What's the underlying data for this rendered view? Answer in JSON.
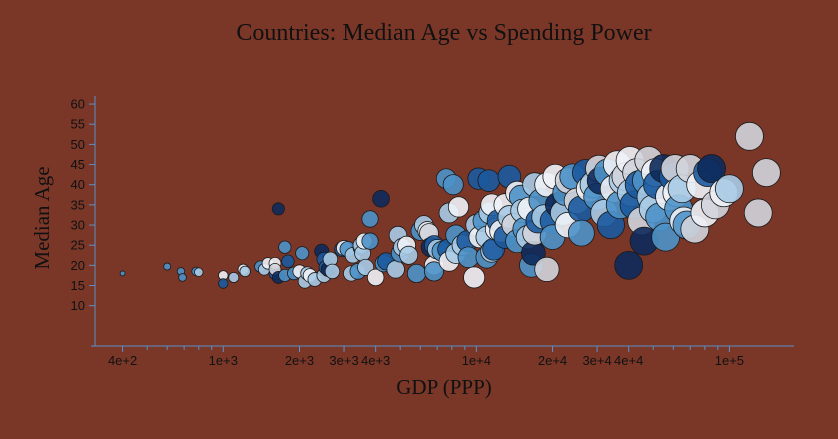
{
  "chart_data": {
    "type": "scatter",
    "title": "Countries: Median Age vs Spending Power",
    "xlabel": "GDP (PPP)",
    "ylabel": "Median Age",
    "x_scale": "log",
    "xlim": [
      300,
      180000
    ],
    "ylim": [
      0,
      62
    ],
    "grid": false,
    "x_ticks": [
      {
        "value": 400,
        "label": "4e+2"
      },
      {
        "value": 1000,
        "label": "1e+3"
      },
      {
        "value": 2000,
        "label": "2e+3"
      },
      {
        "value": 3000,
        "label": "3e+3"
      },
      {
        "value": 4000,
        "label": "4e+3"
      },
      {
        "value": 10000,
        "label": "1e+4"
      },
      {
        "value": 20000,
        "label": "2e+4"
      },
      {
        "value": 30000,
        "label": "3e+4"
      },
      {
        "value": 40000,
        "label": "4e+4"
      },
      {
        "value": 100000,
        "label": "1e+5"
      }
    ],
    "x_minor_ticks": [
      500,
      600,
      700,
      800,
      900,
      5000,
      6000,
      7000,
      8000,
      9000,
      50000,
      60000,
      70000,
      80000,
      90000
    ],
    "y_ticks": [
      10,
      15,
      20,
      25,
      30,
      35,
      40,
      45,
      50,
      55,
      60
    ],
    "color_scale": [
      "#0d2a5c",
      "#1b5aa0",
      "#4d92c9",
      "#a9cbe6",
      "#eef2f7",
      "#d2d4dc"
    ],
    "points": [
      [
        400,
        18,
        2
      ],
      [
        600,
        19.7,
        2
      ],
      [
        680,
        18.5,
        2
      ],
      [
        690,
        17,
        2
      ],
      [
        780,
        18.5,
        2
      ],
      [
        800,
        18.3,
        3
      ],
      [
        1000,
        17.5,
        4
      ],
      [
        1000,
        15.5,
        1
      ],
      [
        1100,
        17,
        3
      ],
      [
        1200,
        19,
        4
      ],
      [
        1220,
        18.5,
        3
      ],
      [
        1400,
        19.7,
        2
      ],
      [
        1450,
        19,
        3
      ],
      [
        1500,
        20.5,
        4
      ],
      [
        1600,
        18,
        1
      ],
      [
        1600,
        20.5,
        4
      ],
      [
        1600,
        19,
        5
      ],
      [
        1650,
        34,
        0
      ],
      [
        1650,
        17,
        0
      ],
      [
        1750,
        24.5,
        2
      ],
      [
        1750,
        17.5,
        2
      ],
      [
        1800,
        21,
        1
      ],
      [
        1900,
        18,
        2
      ],
      [
        2000,
        18.5,
        4
      ],
      [
        2050,
        23,
        2
      ],
      [
        2100,
        16,
        3
      ],
      [
        2150,
        18,
        3
      ],
      [
        2200,
        17.5,
        4
      ],
      [
        2300,
        16.5,
        3
      ],
      [
        2450,
        23.5,
        0
      ],
      [
        2500,
        21.5,
        1
      ],
      [
        2500,
        17.5,
        3
      ],
      [
        2550,
        19.5,
        1
      ],
      [
        2600,
        19,
        0
      ],
      [
        2650,
        21.5,
        3
      ],
      [
        2700,
        18.5,
        3
      ],
      [
        2950,
        24,
        1
      ],
      [
        3000,
        24.3,
        4
      ],
      [
        3100,
        24,
        2
      ],
      [
        3200,
        18,
        3
      ],
      [
        3250,
        22.5,
        3
      ],
      [
        3400,
        18.5,
        2
      ],
      [
        3500,
        24.5,
        1
      ],
      [
        3500,
        25,
        3
      ],
      [
        3550,
        23,
        3
      ],
      [
        3600,
        26,
        4
      ],
      [
        3650,
        19.5,
        3
      ],
      [
        3800,
        31.5,
        2
      ],
      [
        3800,
        26,
        2
      ],
      [
        4000,
        17,
        4
      ],
      [
        4200,
        36.5,
        0
      ],
      [
        4300,
        20.5,
        2
      ],
      [
        4400,
        21,
        1
      ],
      [
        4800,
        19,
        3
      ],
      [
        4900,
        27.5,
        3
      ],
      [
        5000,
        23,
        2
      ],
      [
        5100,
        24.5,
        3
      ],
      [
        5300,
        25,
        4
      ],
      [
        5400,
        22.5,
        3
      ],
      [
        5800,
        18,
        2
      ],
      [
        6000,
        28.5,
        2
      ],
      [
        6200,
        30,
        3
      ],
      [
        6400,
        28.5,
        4
      ],
      [
        6500,
        28,
        5
      ],
      [
        6600,
        24.5,
        0
      ],
      [
        6800,
        25,
        1
      ],
      [
        6800,
        20,
        4
      ],
      [
        6800,
        18.5,
        2
      ],
      [
        7000,
        24,
        3
      ],
      [
        7300,
        23.5,
        2
      ],
      [
        7600,
        41.5,
        2
      ],
      [
        7700,
        24,
        1
      ],
      [
        7800,
        21,
        4
      ],
      [
        7800,
        33,
        3
      ],
      [
        8100,
        40,
        2
      ],
      [
        8300,
        27.5,
        2
      ],
      [
        8300,
        23,
        3
      ],
      [
        8500,
        34.5,
        4
      ],
      [
        8800,
        25,
        3
      ],
      [
        9200,
        26,
        1
      ],
      [
        9300,
        22,
        2
      ],
      [
        9800,
        17,
        4
      ],
      [
        10000,
        30,
        3
      ],
      [
        10200,
        41.5,
        1
      ],
      [
        10300,
        27,
        4
      ],
      [
        10700,
        31,
        2
      ],
      [
        11000,
        22,
        2
      ],
      [
        11000,
        27,
        3
      ],
      [
        11200,
        41,
        1
      ],
      [
        11300,
        33,
        3
      ],
      [
        11500,
        35,
        4
      ],
      [
        11500,
        23.5,
        3
      ],
      [
        11700,
        24,
        1
      ],
      [
        12000,
        29,
        4
      ],
      [
        12200,
        31,
        1
      ],
      [
        12500,
        28.5,
        4
      ],
      [
        13000,
        35,
        4
      ],
      [
        13000,
        27,
        1
      ],
      [
        13500,
        32,
        3
      ],
      [
        13500,
        42,
        1
      ],
      [
        14000,
        30,
        5
      ],
      [
        14500,
        26,
        2
      ],
      [
        14500,
        38,
        4
      ],
      [
        15000,
        37,
        2
      ],
      [
        15200,
        33.5,
        3
      ],
      [
        15500,
        29,
        2
      ],
      [
        16000,
        27,
        3
      ],
      [
        16200,
        34,
        4
      ],
      [
        16500,
        20,
        2
      ],
      [
        16800,
        23,
        0
      ],
      [
        17000,
        40,
        3
      ],
      [
        17000,
        28,
        5
      ],
      [
        17500,
        31,
        1
      ],
      [
        18000,
        36,
        2
      ],
      [
        18500,
        32,
        3
      ],
      [
        19000,
        40,
        4
      ],
      [
        19000,
        19,
        5
      ],
      [
        20000,
        31,
        1
      ],
      [
        20000,
        27,
        2
      ],
      [
        20500,
        42,
        4
      ],
      [
        21000,
        35,
        0
      ],
      [
        22000,
        33,
        3
      ],
      [
        22500,
        38,
        2
      ],
      [
        23000,
        41,
        5
      ],
      [
        23000,
        30,
        4
      ],
      [
        24000,
        42,
        2
      ],
      [
        25000,
        36,
        5
      ],
      [
        26000,
        34,
        1
      ],
      [
        26000,
        28,
        2
      ],
      [
        27000,
        43,
        1
      ],
      [
        28000,
        39,
        4
      ],
      [
        29000,
        40,
        3
      ],
      [
        30000,
        37,
        2
      ],
      [
        30500,
        44,
        5
      ],
      [
        31000,
        41,
        0
      ],
      [
        32000,
        33,
        3
      ],
      [
        33000,
        43,
        2
      ],
      [
        34000,
        30,
        1
      ],
      [
        35000,
        39,
        4
      ],
      [
        36000,
        45,
        4
      ],
      [
        37000,
        35,
        2
      ],
      [
        38000,
        41,
        3
      ],
      [
        39000,
        42,
        5
      ],
      [
        40000,
        20,
        0
      ],
      [
        40500,
        46,
        4
      ],
      [
        41000,
        38,
        3
      ],
      [
        42000,
        35,
        1
      ],
      [
        43000,
        43,
        5
      ],
      [
        44000,
        40,
        1
      ],
      [
        45000,
        31,
        5
      ],
      [
        46000,
        26,
        0
      ],
      [
        47000,
        41,
        2
      ],
      [
        48000,
        46,
        5
      ],
      [
        49000,
        37,
        3
      ],
      [
        50000,
        34,
        3
      ],
      [
        51000,
        43,
        4
      ],
      [
        52000,
        40,
        1
      ],
      [
        53000,
        32,
        2
      ],
      [
        55000,
        44,
        0
      ],
      [
        56000,
        27,
        2
      ],
      [
        58000,
        37,
        4
      ],
      [
        60000,
        42,
        1
      ],
      [
        61000,
        44,
        5
      ],
      [
        62000,
        38,
        4
      ],
      [
        63000,
        34,
        2
      ],
      [
        65000,
        39,
        3
      ],
      [
        66000,
        31,
        4
      ],
      [
        68000,
        30,
        2
      ],
      [
        70000,
        44,
        5
      ],
      [
        73000,
        29,
        5
      ],
      [
        77000,
        40,
        4
      ],
      [
        80000,
        33,
        4
      ],
      [
        82000,
        43,
        1
      ],
      [
        85000,
        44,
        0
      ],
      [
        88000,
        35,
        5
      ],
      [
        95000,
        38,
        4
      ],
      [
        100000,
        39,
        3
      ],
      [
        120000,
        52,
        5
      ],
      [
        130000,
        33,
        5
      ],
      [
        140000,
        43,
        5
      ]
    ]
  }
}
